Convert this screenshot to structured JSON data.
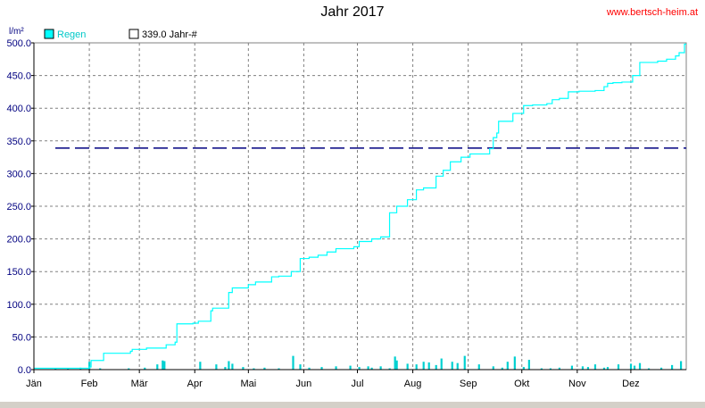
{
  "title": "Jahr 2017",
  "source": "www.bertsch-heim.at",
  "colors": {
    "rain": "#00ffff",
    "reference": "#000080",
    "grid": "#808080",
    "bars": "#00d0d0"
  },
  "chart_data": {
    "type": "line",
    "title": "Jahr 2017",
    "ylabel": "l/m²",
    "ylim": [
      0,
      500
    ],
    "yticks": [
      "0.0",
      "50.0",
      "100.0",
      "150.0",
      "200.0",
      "250.0",
      "300.0",
      "350.0",
      "400.0",
      "450.0",
      "500.0"
    ],
    "months": [
      "Jän",
      "Feb",
      "Mär",
      "Apr",
      "Mai",
      "Jun",
      "Jul",
      "Aug",
      "Sep",
      "Okt",
      "Nov",
      "Dez"
    ],
    "grid": true,
    "legend": {
      "position": "top-left",
      "series": [
        "Regen",
        "339.0 Jahr-#"
      ]
    },
    "series": [
      {
        "name": "Regen",
        "type": "cumulative-line",
        "x_day": [
          1,
          32,
          33,
          40,
          45,
          55,
          56,
          64,
          75,
          80,
          81,
          90,
          93,
          100,
          101,
          105,
          110,
          112,
          121,
          125,
          134,
          138,
          142,
          145,
          150,
          155,
          160,
          165,
          170,
          180,
          183,
          190,
          195,
          200,
          204,
          210,
          215,
          219,
          225,
          226,
          230,
          234,
          236,
          240,
          245,
          256,
          258,
          260,
          261,
          268,
          269,
          275,
          280,
          288,
          291,
          295,
          300,
          306,
          315,
          320,
          322,
          325,
          330,
          336,
          340,
          350,
          355,
          360,
          362,
          365
        ],
        "values": [
          2,
          4,
          14,
          25,
          25,
          28,
          31,
          33,
          38,
          42,
          70,
          71,
          74,
          90,
          94,
          94,
          118,
          125,
          130,
          134,
          142,
          143,
          143,
          150,
          170,
          172,
          175,
          180,
          185,
          188,
          196,
          200,
          203,
          240,
          250,
          260,
          275,
          278,
          278,
          296,
          305,
          318,
          318,
          325,
          330,
          338,
          355,
          362,
          380,
          380,
          392,
          404,
          405,
          407,
          413,
          415,
          425,
          426,
          427,
          433,
          438,
          439,
          440,
          450,
          470,
          472,
          475,
          480,
          485,
          498
        ]
      },
      {
        "name": "339.0 Jahr-#",
        "type": "reference",
        "value": 339.0
      },
      {
        "name": "daily",
        "type": "bars",
        "x_day": [
          13,
          20,
          27,
          32,
          38,
          54,
          63,
          70,
          73,
          74,
          94,
          103,
          108,
          110,
          112,
          118,
          124,
          130,
          138,
          146,
          150,
          155,
          162,
          170,
          178,
          183,
          188,
          190,
          195,
          200,
          203,
          204,
          210,
          215,
          219,
          222,
          226,
          229,
          235,
          238,
          242,
          250,
          258,
          263,
          266,
          270,
          275,
          278,
          285,
          290,
          295,
          302,
          308,
          311,
          315,
          320,
          322,
          328,
          335,
          337,
          340,
          345,
          352,
          358,
          363
        ],
        "values": [
          2,
          2,
          3,
          12,
          2,
          2,
          3,
          8,
          14,
          13,
          12,
          8,
          4,
          13,
          9,
          4,
          2,
          3,
          2,
          21,
          8,
          3,
          4,
          5,
          6,
          4,
          5,
          3,
          5,
          2,
          20,
          14,
          9,
          8,
          12,
          11,
          7,
          17,
          12,
          10,
          21,
          8,
          5,
          3,
          12,
          20,
          4,
          15,
          2,
          2,
          3,
          6,
          5,
          4,
          8,
          3,
          4,
          8,
          9,
          6,
          10,
          2,
          3,
          7,
          13
        ]
      }
    ]
  }
}
